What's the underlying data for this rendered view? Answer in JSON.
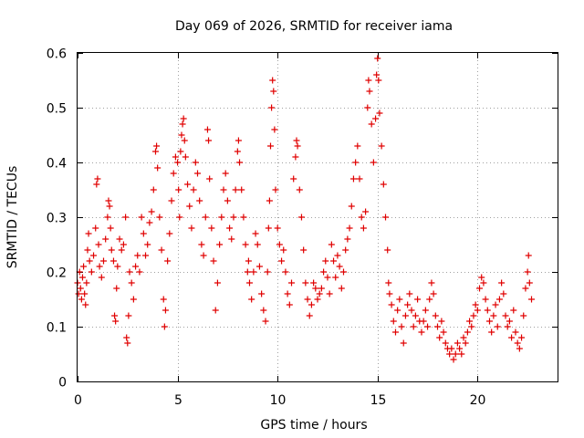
{
  "chart_data": {
    "type": "scatter",
    "title": "Day 069 of 2026, SRMTID for receiver iama",
    "xlabel": "GPS time / hours",
    "ylabel": "SRMTID / TECUs",
    "xlim": [
      0,
      24
    ],
    "ylim": [
      0,
      0.6
    ],
    "x_ticks": [
      0,
      5,
      10,
      15,
      20
    ],
    "y_ticks": [
      0,
      0.1,
      0.2,
      0.3,
      0.4,
      0.5,
      0.6
    ],
    "x_tick_labels": [
      "0",
      "5",
      "10",
      "15",
      "20"
    ],
    "y_tick_labels": [
      "0",
      "0.1",
      "0.2",
      "0.3",
      "0.4",
      "0.5",
      "0.6"
    ],
    "grid": true,
    "marker": "+",
    "marker_color": "#e00000",
    "series": [
      {
        "name": "SRMTID",
        "points": [
          [
            0.0,
            0.18
          ],
          [
            0.05,
            0.16
          ],
          [
            0.1,
            0.2
          ],
          [
            0.15,
            0.17
          ],
          [
            0.2,
            0.15
          ],
          [
            0.25,
            0.19
          ],
          [
            0.3,
            0.21
          ],
          [
            0.35,
            0.16
          ],
          [
            0.4,
            0.14
          ],
          [
            0.45,
            0.18
          ],
          [
            0.5,
            0.24
          ],
          [
            0.55,
            0.27
          ],
          [
            0.6,
            0.22
          ],
          [
            0.7,
            0.2
          ],
          [
            0.8,
            0.23
          ],
          [
            0.9,
            0.28
          ],
          [
            0.95,
            0.36
          ],
          [
            1.0,
            0.37
          ],
          [
            1.05,
            0.25
          ],
          [
            1.1,
            0.21
          ],
          [
            1.2,
            0.19
          ],
          [
            1.3,
            0.22
          ],
          [
            1.4,
            0.26
          ],
          [
            1.5,
            0.3
          ],
          [
            1.55,
            0.33
          ],
          [
            1.6,
            0.32
          ],
          [
            1.65,
            0.28
          ],
          [
            1.7,
            0.24
          ],
          [
            1.8,
            0.22
          ],
          [
            1.85,
            0.12
          ],
          [
            1.9,
            0.11
          ],
          [
            1.95,
            0.17
          ],
          [
            2.0,
            0.21
          ],
          [
            2.1,
            0.26
          ],
          [
            2.2,
            0.24
          ],
          [
            2.3,
            0.25
          ],
          [
            2.4,
            0.3
          ],
          [
            2.45,
            0.08
          ],
          [
            2.5,
            0.07
          ],
          [
            2.55,
            0.12
          ],
          [
            2.6,
            0.2
          ],
          [
            2.7,
            0.18
          ],
          [
            2.8,
            0.15
          ],
          [
            2.9,
            0.21
          ],
          [
            3.0,
            0.23
          ],
          [
            3.1,
            0.2
          ],
          [
            3.2,
            0.3
          ],
          [
            3.3,
            0.27
          ],
          [
            3.4,
            0.23
          ],
          [
            3.5,
            0.25
          ],
          [
            3.6,
            0.29
          ],
          [
            3.7,
            0.31
          ],
          [
            3.8,
            0.35
          ],
          [
            3.9,
            0.42
          ],
          [
            3.95,
            0.43
          ],
          [
            4.0,
            0.39
          ],
          [
            4.1,
            0.3
          ],
          [
            4.2,
            0.24
          ],
          [
            4.3,
            0.15
          ],
          [
            4.35,
            0.1
          ],
          [
            4.4,
            0.13
          ],
          [
            4.5,
            0.22
          ],
          [
            4.6,
            0.27
          ],
          [
            4.7,
            0.33
          ],
          [
            4.8,
            0.38
          ],
          [
            4.9,
            0.41
          ],
          [
            5.0,
            0.4
          ],
          [
            5.05,
            0.35
          ],
          [
            5.1,
            0.3
          ],
          [
            5.15,
            0.42
          ],
          [
            5.2,
            0.45
          ],
          [
            5.25,
            0.47
          ],
          [
            5.3,
            0.48
          ],
          [
            5.35,
            0.44
          ],
          [
            5.4,
            0.41
          ],
          [
            5.5,
            0.36
          ],
          [
            5.6,
            0.32
          ],
          [
            5.7,
            0.28
          ],
          [
            5.8,
            0.35
          ],
          [
            5.9,
            0.4
          ],
          [
            6.0,
            0.38
          ],
          [
            6.1,
            0.33
          ],
          [
            6.2,
            0.25
          ],
          [
            6.3,
            0.23
          ],
          [
            6.4,
            0.3
          ],
          [
            6.5,
            0.46
          ],
          [
            6.55,
            0.44
          ],
          [
            6.6,
            0.37
          ],
          [
            6.7,
            0.28
          ],
          [
            6.8,
            0.22
          ],
          [
            6.9,
            0.13
          ],
          [
            7.0,
            0.18
          ],
          [
            7.1,
            0.25
          ],
          [
            7.2,
            0.3
          ],
          [
            7.3,
            0.35
          ],
          [
            7.4,
            0.38
          ],
          [
            7.5,
            0.33
          ],
          [
            7.6,
            0.28
          ],
          [
            7.7,
            0.26
          ],
          [
            7.8,
            0.3
          ],
          [
            7.9,
            0.35
          ],
          [
            8.0,
            0.42
          ],
          [
            8.05,
            0.44
          ],
          [
            8.1,
            0.4
          ],
          [
            8.2,
            0.35
          ],
          [
            8.3,
            0.3
          ],
          [
            8.4,
            0.25
          ],
          [
            8.5,
            0.2
          ],
          [
            8.55,
            0.22
          ],
          [
            8.6,
            0.18
          ],
          [
            8.7,
            0.15
          ],
          [
            8.8,
            0.2
          ],
          [
            8.9,
            0.27
          ],
          [
            9.0,
            0.25
          ],
          [
            9.1,
            0.21
          ],
          [
            9.2,
            0.16
          ],
          [
            9.3,
            0.13
          ],
          [
            9.4,
            0.11
          ],
          [
            9.5,
            0.2
          ],
          [
            9.55,
            0.28
          ],
          [
            9.6,
            0.33
          ],
          [
            9.65,
            0.43
          ],
          [
            9.7,
            0.5
          ],
          [
            9.75,
            0.55
          ],
          [
            9.8,
            0.53
          ],
          [
            9.85,
            0.46
          ],
          [
            9.9,
            0.35
          ],
          [
            10.0,
            0.28
          ],
          [
            10.1,
            0.25
          ],
          [
            10.2,
            0.22
          ],
          [
            10.3,
            0.24
          ],
          [
            10.4,
            0.2
          ],
          [
            10.5,
            0.16
          ],
          [
            10.6,
            0.14
          ],
          [
            10.7,
            0.18
          ],
          [
            10.8,
            0.37
          ],
          [
            10.9,
            0.41
          ],
          [
            10.95,
            0.44
          ],
          [
            11.0,
            0.43
          ],
          [
            11.1,
            0.35
          ],
          [
            11.2,
            0.3
          ],
          [
            11.3,
            0.24
          ],
          [
            11.4,
            0.18
          ],
          [
            11.5,
            0.15
          ],
          [
            11.6,
            0.12
          ],
          [
            11.7,
            0.14
          ],
          [
            11.8,
            0.18
          ],
          [
            11.9,
            0.17
          ],
          [
            12.0,
            0.15
          ],
          [
            12.1,
            0.16
          ],
          [
            12.2,
            0.17
          ],
          [
            12.3,
            0.2
          ],
          [
            12.4,
            0.22
          ],
          [
            12.5,
            0.19
          ],
          [
            12.6,
            0.16
          ],
          [
            12.7,
            0.25
          ],
          [
            12.8,
            0.22
          ],
          [
            12.9,
            0.19
          ],
          [
            13.0,
            0.23
          ],
          [
            13.1,
            0.21
          ],
          [
            13.2,
            0.17
          ],
          [
            13.3,
            0.2
          ],
          [
            13.4,
            0.24
          ],
          [
            13.5,
            0.26
          ],
          [
            13.6,
            0.28
          ],
          [
            13.7,
            0.32
          ],
          [
            13.8,
            0.37
          ],
          [
            13.9,
            0.4
          ],
          [
            14.0,
            0.43
          ],
          [
            14.1,
            0.37
          ],
          [
            14.2,
            0.3
          ],
          [
            14.3,
            0.28
          ],
          [
            14.4,
            0.31
          ],
          [
            14.5,
            0.5
          ],
          [
            14.55,
            0.55
          ],
          [
            14.6,
            0.53
          ],
          [
            14.7,
            0.47
          ],
          [
            14.8,
            0.4
          ],
          [
            14.9,
            0.48
          ],
          [
            14.95,
            0.56
          ],
          [
            15.0,
            0.59
          ],
          [
            15.05,
            0.55
          ],
          [
            15.1,
            0.49
          ],
          [
            15.2,
            0.43
          ],
          [
            15.3,
            0.36
          ],
          [
            15.4,
            0.3
          ],
          [
            15.5,
            0.24
          ],
          [
            15.55,
            0.18
          ],
          [
            15.6,
            0.16
          ],
          [
            15.7,
            0.14
          ],
          [
            15.8,
            0.11
          ],
          [
            15.9,
            0.09
          ],
          [
            16.0,
            0.13
          ],
          [
            16.1,
            0.15
          ],
          [
            16.2,
            0.1
          ],
          [
            16.3,
            0.07
          ],
          [
            16.4,
            0.12
          ],
          [
            16.5,
            0.14
          ],
          [
            16.6,
            0.16
          ],
          [
            16.7,
            0.13
          ],
          [
            16.8,
            0.1
          ],
          [
            16.9,
            0.12
          ],
          [
            17.0,
            0.15
          ],
          [
            17.1,
            0.11
          ],
          [
            17.2,
            0.09
          ],
          [
            17.3,
            0.11
          ],
          [
            17.4,
            0.13
          ],
          [
            17.5,
            0.1
          ],
          [
            17.6,
            0.15
          ],
          [
            17.7,
            0.18
          ],
          [
            17.8,
            0.16
          ],
          [
            17.9,
            0.12
          ],
          [
            18.0,
            0.1
          ],
          [
            18.1,
            0.08
          ],
          [
            18.2,
            0.11
          ],
          [
            18.3,
            0.09
          ],
          [
            18.4,
            0.07
          ],
          [
            18.5,
            0.06
          ],
          [
            18.6,
            0.05
          ],
          [
            18.7,
            0.06
          ],
          [
            18.8,
            0.04
          ],
          [
            18.9,
            0.05
          ],
          [
            19.0,
            0.07
          ],
          [
            19.1,
            0.06
          ],
          [
            19.2,
            0.05
          ],
          [
            19.3,
            0.08
          ],
          [
            19.4,
            0.07
          ],
          [
            19.5,
            0.09
          ],
          [
            19.6,
            0.11
          ],
          [
            19.7,
            0.1
          ],
          [
            19.8,
            0.12
          ],
          [
            19.9,
            0.14
          ],
          [
            20.0,
            0.13
          ],
          [
            20.1,
            0.17
          ],
          [
            20.2,
            0.19
          ],
          [
            20.3,
            0.18
          ],
          [
            20.4,
            0.15
          ],
          [
            20.5,
            0.13
          ],
          [
            20.6,
            0.11
          ],
          [
            20.7,
            0.09
          ],
          [
            20.8,
            0.12
          ],
          [
            20.9,
            0.14
          ],
          [
            21.0,
            0.1
          ],
          [
            21.1,
            0.15
          ],
          [
            21.2,
            0.18
          ],
          [
            21.3,
            0.16
          ],
          [
            21.4,
            0.12
          ],
          [
            21.5,
            0.1
          ],
          [
            21.6,
            0.11
          ],
          [
            21.7,
            0.08
          ],
          [
            21.8,
            0.13
          ],
          [
            21.9,
            0.09
          ],
          [
            22.0,
            0.07
          ],
          [
            22.1,
            0.06
          ],
          [
            22.2,
            0.08
          ],
          [
            22.3,
            0.12
          ],
          [
            22.4,
            0.17
          ],
          [
            22.5,
            0.2
          ],
          [
            22.55,
            0.23
          ],
          [
            22.6,
            0.18
          ],
          [
            22.7,
            0.15
          ]
        ]
      }
    ]
  }
}
